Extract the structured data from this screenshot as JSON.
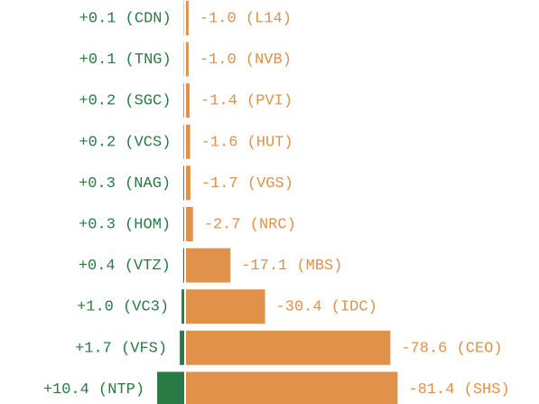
{
  "chart_data": {
    "type": "bar",
    "series": [
      {
        "color": "#2a7a45",
        "values": [
          0.1,
          0.1,
          0.2,
          0.2,
          0.3,
          0.3,
          0.4,
          1.0,
          1.7,
          10.4
        ],
        "value_labels": [
          "+0.1 (CDN)",
          "+0.1 (TNG)",
          "+0.2 (SGC)",
          "+0.2 (VCS)",
          "+0.3 (NAG)",
          "+0.3 (HOM)",
          "+0.4 (VTZ)",
          "+1.0 (VC3)",
          "+1.7 (VFS)",
          "+10.4 (NTP)"
        ]
      },
      {
        "color": "#e0914a",
        "values": [
          -1.0,
          -1.0,
          -1.4,
          -1.6,
          -1.7,
          -2.7,
          -17.1,
          -30.4,
          -78.6,
          -81.4
        ],
        "value_labels": [
          "-1.0 (L14)",
          "-1.0 (NVB)",
          "-1.4 (PVI)",
          "-1.6 (HUT)",
          "-1.7 (VGS)",
          "-2.7 (NRC)",
          "-17.1 (MBS)",
          "-30.4 (IDC)",
          "-78.6 (CEO)",
          "-81.4 (SHS)"
        ]
      }
    ]
  }
}
